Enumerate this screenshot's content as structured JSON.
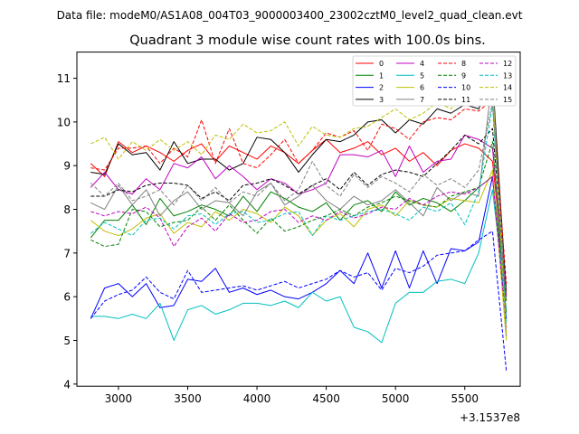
{
  "figure": {
    "suptitle": "Data file: modeM0/AS1A08_004T03_9000003400_23002cztM0_level2_quad_clean.evt"
  },
  "chart_data": {
    "type": "line",
    "title": "Quadrant 3 module wise count rates with 100.0s bins.",
    "xlabel": "",
    "ylabel": "",
    "x_offset_label": "+3.1537e8",
    "x": [
      2800,
      2900,
      3000,
      3100,
      3200,
      3300,
      3400,
      3500,
      3600,
      3700,
      3800,
      3900,
      4000,
      4100,
      4200,
      4300,
      4400,
      4500,
      4600,
      4700,
      4800,
      4900,
      5000,
      5100,
      5200,
      5300,
      5400,
      5500,
      5600,
      5700,
      5800
    ],
    "xlim": [
      2700,
      5900
    ],
    "ylim": [
      3.95,
      11.6
    ],
    "xticks": [
      3000,
      3500,
      4000,
      4500,
      5000,
      5500
    ],
    "xtick_labels": [
      "3000",
      "3500",
      "4000",
      "4500",
      "5000",
      "5500"
    ],
    "yticks": [
      4,
      5,
      6,
      7,
      8,
      9,
      10,
      11
    ],
    "ytick_labels": [
      "4",
      "5",
      "6",
      "7",
      "8",
      "9",
      "10",
      "11"
    ],
    "grid": false,
    "legend": {
      "placement": "top-right",
      "columns": 4
    },
    "series": [
      {
        "name": "0",
        "color": "#ff0000",
        "dash": "solid",
        "values": [
          9.05,
          8.75,
          9.55,
          9.3,
          9.45,
          9.3,
          9.1,
          9.35,
          9.5,
          9.1,
          9.45,
          9.3,
          9.15,
          9.45,
          9.3,
          9.05,
          9.35,
          9.6,
          9.3,
          9.4,
          9.55,
          9.25,
          9.4,
          9.1,
          9.3,
          9.0,
          9.35,
          9.5,
          9.4,
          9.1,
          6.1
        ]
      },
      {
        "name": "1",
        "color": "#008000",
        "dash": "solid",
        "values": [
          7.35,
          7.75,
          7.75,
          8.1,
          7.65,
          8.25,
          7.85,
          7.95,
          8.1,
          8.0,
          7.85,
          8.3,
          7.95,
          8.4,
          8.25,
          8.05,
          7.95,
          8.15,
          7.75,
          8.1,
          8.2,
          7.95,
          8.4,
          8.1,
          8.25,
          8.15,
          7.95,
          8.2,
          8.5,
          8.75,
          5.9
        ]
      },
      {
        "name": "2",
        "color": "#0000ff",
        "dash": "solid",
        "values": [
          5.5,
          6.2,
          6.3,
          6.0,
          6.3,
          5.75,
          5.8,
          6.4,
          6.35,
          6.65,
          6.1,
          6.2,
          6.05,
          6.15,
          6.0,
          5.95,
          6.1,
          6.3,
          6.6,
          6.3,
          7.0,
          6.2,
          7.05,
          6.2,
          7.05,
          6.3,
          7.1,
          7.05,
          7.25,
          8.75,
          5.5
        ]
      },
      {
        "name": "3",
        "color": "#000000",
        "dash": "solid",
        "values": [
          8.85,
          8.8,
          9.5,
          9.25,
          9.3,
          8.9,
          9.55,
          9.05,
          9.15,
          9.15,
          8.9,
          9.05,
          9.65,
          9.6,
          9.3,
          8.85,
          9.25,
          9.6,
          9.55,
          9.7,
          10.0,
          10.05,
          9.75,
          10.05,
          9.95,
          10.3,
          10.2,
          10.4,
          10.3,
          11.05,
          6.0
        ]
      },
      {
        "name": "4",
        "color": "#c000c0",
        "dash": "solid",
        "values": [
          8.5,
          8.85,
          8.45,
          8.35,
          8.7,
          8.45,
          9.05,
          8.95,
          9.2,
          8.7,
          9.0,
          8.75,
          8.45,
          8.7,
          8.6,
          8.35,
          8.45,
          8.6,
          9.25,
          9.25,
          9.2,
          9.35,
          8.75,
          9.45,
          8.85,
          9.1,
          9.15,
          9.7,
          9.6,
          9.4,
          6.0
        ]
      },
      {
        "name": "5",
        "color": "#00bfbf",
        "dash": "solid",
        "values": [
          5.55,
          5.55,
          5.5,
          5.6,
          5.5,
          5.85,
          5.0,
          5.7,
          5.8,
          5.6,
          5.7,
          5.85,
          5.85,
          5.8,
          5.9,
          5.75,
          6.1,
          5.9,
          6.0,
          5.3,
          5.2,
          4.95,
          5.85,
          6.1,
          6.1,
          6.35,
          6.4,
          6.3,
          7.0,
          8.45,
          5.7
        ]
      },
      {
        "name": "6",
        "color": "#bfbf00",
        "dash": "solid",
        "values": [
          7.75,
          7.5,
          7.4,
          7.55,
          7.8,
          7.9,
          7.45,
          7.7,
          7.6,
          7.95,
          7.75,
          8.0,
          7.9,
          7.7,
          8.05,
          7.85,
          7.4,
          7.75,
          7.9,
          7.6,
          8.0,
          8.1,
          7.85,
          8.2,
          8.1,
          8.05,
          8.25,
          8.2,
          8.15,
          8.9,
          5.0
        ]
      },
      {
        "name": "7",
        "color": "#808080",
        "dash": "solid",
        "values": [
          8.15,
          8.0,
          8.55,
          8.1,
          8.45,
          7.85,
          8.2,
          8.4,
          8.0,
          8.2,
          8.15,
          7.85,
          8.4,
          8.6,
          8.1,
          8.3,
          8.55,
          8.2,
          8.0,
          8.3,
          8.1,
          8.2,
          8.45,
          8.15,
          7.85,
          8.5,
          8.2,
          8.4,
          8.3,
          11.05,
          5.1
        ]
      },
      {
        "name": "8",
        "color": "#ff0000",
        "dash": "dashed",
        "values": [
          8.95,
          8.9,
          9.4,
          9.4,
          9.45,
          9.05,
          9.4,
          9.2,
          10.05,
          9.05,
          9.85,
          9.05,
          8.95,
          9.25,
          9.6,
          9.05,
          9.35,
          9.75,
          9.65,
          9.8,
          9.35,
          9.95,
          9.85,
          9.6,
          10.0,
          10.1,
          10.05,
          10.3,
          10.25,
          10.5,
          6.3
        ]
      },
      {
        "name": "9",
        "color": "#008000",
        "dash": "dashed",
        "values": [
          7.3,
          7.15,
          7.2,
          8.0,
          7.95,
          7.6,
          7.7,
          7.75,
          8.05,
          7.75,
          8.1,
          7.75,
          7.45,
          7.8,
          7.5,
          7.6,
          7.75,
          7.85,
          8.0,
          7.85,
          8.05,
          8.15,
          8.3,
          8.2,
          8.1,
          8.05,
          8.3,
          8.4,
          8.5,
          9.55,
          5.6
        ]
      },
      {
        "name": "10",
        "color": "#0000ff",
        "dash": "dashed",
        "values": [
          5.5,
          5.9,
          6.05,
          6.15,
          6.45,
          6.1,
          5.95,
          6.6,
          6.1,
          6.15,
          6.2,
          6.25,
          6.15,
          6.25,
          6.35,
          6.2,
          6.3,
          6.4,
          6.6,
          6.45,
          6.55,
          6.15,
          6.65,
          6.55,
          6.7,
          6.95,
          7.0,
          7.05,
          7.3,
          7.5,
          4.3
        ]
      },
      {
        "name": "11",
        "color": "#000000",
        "dash": "dashed",
        "values": [
          8.3,
          8.3,
          8.45,
          8.4,
          8.55,
          8.6,
          8.6,
          8.55,
          8.25,
          8.4,
          8.2,
          8.55,
          8.6,
          8.7,
          8.55,
          8.35,
          8.55,
          8.7,
          8.45,
          8.85,
          8.55,
          8.8,
          8.9,
          8.85,
          8.75,
          9.05,
          9.35,
          9.7,
          9.5,
          9.85,
          6.15
        ]
      },
      {
        "name": "12",
        "color": "#c000c0",
        "dash": "dashed",
        "values": [
          7.95,
          7.85,
          7.95,
          7.9,
          8.05,
          7.8,
          7.15,
          7.6,
          7.8,
          7.5,
          7.9,
          7.7,
          7.75,
          7.95,
          8.0,
          7.7,
          7.85,
          7.75,
          7.95,
          7.8,
          7.9,
          8.05,
          8.0,
          8.25,
          8.1,
          8.3,
          8.4,
          8.35,
          8.5,
          8.75,
          5.3
        ]
      },
      {
        "name": "13",
        "color": "#00bfbf",
        "dash": "dashed",
        "values": [
          7.45,
          7.7,
          7.55,
          7.4,
          7.75,
          7.8,
          7.55,
          7.85,
          7.9,
          7.65,
          7.9,
          7.95,
          7.7,
          7.75,
          7.9,
          7.95,
          7.4,
          7.85,
          7.75,
          7.85,
          7.95,
          8.0,
          7.9,
          7.75,
          8.05,
          7.95,
          8.15,
          7.65,
          8.4,
          10.4,
          5.4
        ]
      },
      {
        "name": "14",
        "color": "#bfbf00",
        "dash": "dashed",
        "values": [
          9.5,
          9.65,
          9.15,
          9.55,
          9.35,
          9.6,
          9.35,
          9.55,
          9.25,
          9.7,
          9.6,
          9.95,
          9.75,
          9.8,
          10.0,
          9.45,
          9.9,
          9.7,
          9.65,
          9.85,
          9.9,
          10.1,
          10.3,
          10.05,
          10.2,
          10.45,
          10.3,
          10.6,
          10.65,
          10.8,
          5.1
        ]
      },
      {
        "name": "15",
        "color": "#808080",
        "dash": "dashed",
        "values": [
          8.6,
          8.3,
          8.6,
          8.2,
          8.3,
          8.45,
          8.1,
          8.55,
          8.2,
          8.5,
          8.15,
          8.4,
          8.3,
          8.6,
          8.2,
          8.45,
          9.1,
          8.55,
          8.3,
          8.8,
          8.5,
          8.75,
          8.6,
          8.4,
          8.8,
          8.55,
          8.7,
          8.5,
          8.9,
          10.45,
          5.9
        ]
      }
    ]
  }
}
